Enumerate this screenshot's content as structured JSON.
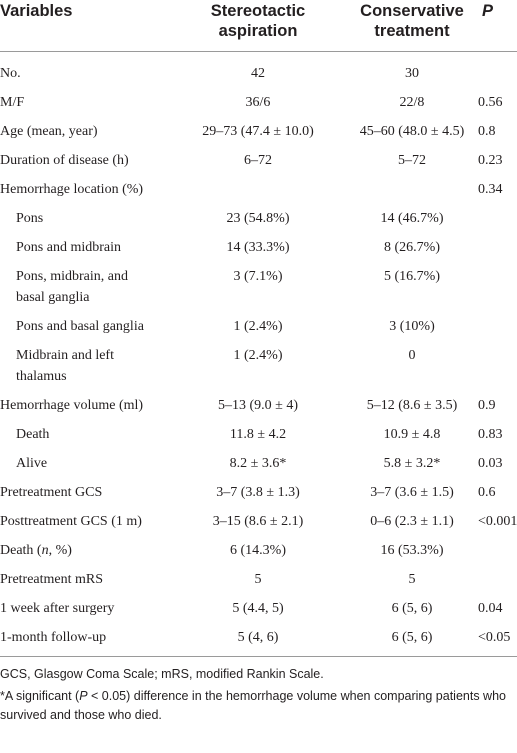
{
  "table": {
    "header": [
      "Variables",
      "Stereotactic aspiration",
      "Conservative treatment",
      "P"
    ],
    "rows": [
      {
        "label": [
          "No."
        ],
        "cells": [
          "42",
          "30",
          ""
        ]
      },
      {
        "label": [
          "M/F"
        ],
        "cells": [
          "36/6",
          "22/8",
          "0.56"
        ]
      },
      {
        "label": [
          "Age (mean, year)"
        ],
        "cells": [
          "29–73 (47.4 ± 10.0)",
          "45–60 (48.0 ± 4.5)",
          "0.8"
        ]
      },
      {
        "label": [
          "Duration of disease (h)"
        ],
        "cells": [
          "6–72",
          "5–72",
          "0.23"
        ]
      },
      {
        "label": [
          "Hemorrhage location (%)"
        ],
        "cells": [
          "",
          "",
          "0.34"
        ]
      },
      {
        "label": [
          "Pons"
        ],
        "indent": true,
        "cells": [
          "23 (54.8%)",
          "14 (46.7%)",
          ""
        ]
      },
      {
        "label": [
          "Pons and midbrain"
        ],
        "indent": true,
        "cells": [
          "14 (33.3%)",
          "8 (26.7%)",
          ""
        ]
      },
      {
        "label": [
          "Pons, midbrain, and basal ganglia"
        ],
        "indent": true,
        "cells": [
          "3 (7.1%)",
          "5 (16.7%)",
          ""
        ]
      },
      {
        "label": [
          "Pons and basal ganglia"
        ],
        "indent": true,
        "cells": [
          "1 (2.4%)",
          "3 (10%)",
          ""
        ]
      },
      {
        "label": [
          "Midbrain and left thalamus"
        ],
        "indent": true,
        "cells": [
          "1 (2.4%)",
          "0",
          ""
        ]
      },
      {
        "label": [
          "Hemorrhage volume (ml)"
        ],
        "cells": [
          "5–13 (9.0 ± 4)",
          "5–12 (8.6 ± 3.5)",
          "0.9"
        ]
      },
      {
        "label": [
          "Death"
        ],
        "indent": true,
        "cells": [
          "11.8 ± 4.2",
          "10.9 ± 4.8",
          "0.83"
        ]
      },
      {
        "label": [
          "Alive"
        ],
        "indent": true,
        "cells": [
          "8.2 ± 3.6*",
          "5.8 ± 3.2*",
          "0.03"
        ]
      },
      {
        "label": [
          "Pretreatment GCS"
        ],
        "cells": [
          "3–7 (3.8 ± 1.3)",
          "3–7 (3.6 ± 1.5)",
          "0.6"
        ]
      },
      {
        "label": [
          "Posttreatment GCS (1 m)"
        ],
        "cells": [
          "3–15 (8.6 ± 2.1)",
          "0–6 (2.3 ± 1.1)",
          "<0.001"
        ]
      },
      {
        "label": [
          "Death (",
          "n",
          ", %)"
        ],
        "cells": [
          "6 (14.3%)",
          "16 (53.3%)",
          ""
        ]
      },
      {
        "label": [
          "Pretreatment mRS"
        ],
        "cells": [
          "5",
          "5",
          ""
        ]
      },
      {
        "label": [
          "1 week after surgery"
        ],
        "cells": [
          "5 (4.4, 5)",
          "6 (5, 6)",
          "0.04"
        ]
      },
      {
        "label": [
          "1-month follow-up"
        ],
        "cells": [
          "5 (4, 6)",
          "6 (5, 6)",
          "<0.05"
        ]
      }
    ],
    "notes": [
      [
        "GCS, Glasgow Coma Scale; mRS, modified Rankin Scale."
      ],
      [
        "*A significant (",
        "P",
        " < 0.05) difference in the hemorrhage volume when comparing patients who survived and those who died."
      ]
    ]
  }
}
